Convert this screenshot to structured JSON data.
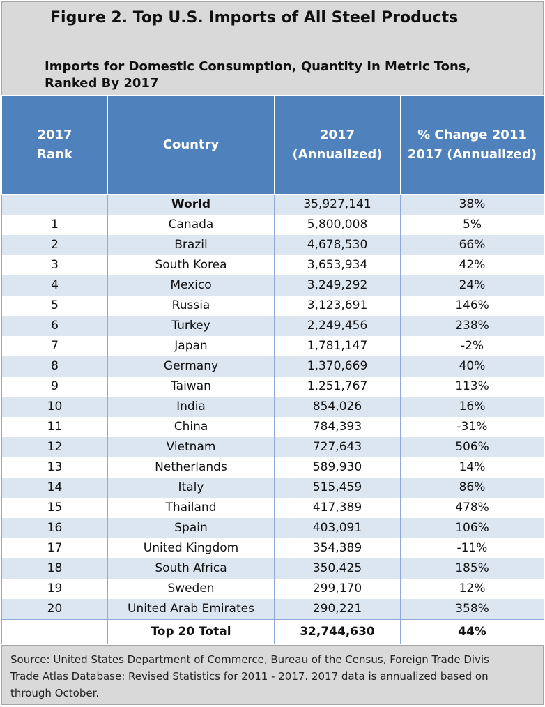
{
  "chart_data": {
    "type": "table",
    "title": "Figure 2. Top U.S. Imports of All Steel Products",
    "subtitle": {
      "line1": "Imports for Domestic Consumption, Quantity In Metric Tons,",
      "line2": "Ranked By 2017"
    },
    "columns": [
      {
        "line1": "2017",
        "line2": "Rank"
      },
      {
        "line1": "Country",
        "line2": ""
      },
      {
        "line1": "2017",
        "line2": "(Annualized)"
      },
      {
        "line1": "% Change 2011",
        "line2": "2017 (Annualized)"
      }
    ],
    "world": {
      "rank": "",
      "country": "World",
      "value": "35,927,141",
      "change": "38%"
    },
    "rows": [
      {
        "rank": "1",
        "country": "Canada",
        "value": "5,800,008",
        "change": "5%"
      },
      {
        "rank": "2",
        "country": "Brazil",
        "value": "4,678,530",
        "change": "66%"
      },
      {
        "rank": "3",
        "country": "South Korea",
        "value": "3,653,934",
        "change": "42%"
      },
      {
        "rank": "4",
        "country": "Mexico",
        "value": "3,249,292",
        "change": "24%"
      },
      {
        "rank": "5",
        "country": "Russia",
        "value": "3,123,691",
        "change": "146%"
      },
      {
        "rank": "6",
        "country": "Turkey",
        "value": "2,249,456",
        "change": "238%"
      },
      {
        "rank": "7",
        "country": "Japan",
        "value": "1,781,147",
        "change": "-2%"
      },
      {
        "rank": "8",
        "country": "Germany",
        "value": "1,370,669",
        "change": "40%"
      },
      {
        "rank": "9",
        "country": "Taiwan",
        "value": "1,251,767",
        "change": "113%"
      },
      {
        "rank": "10",
        "country": "India",
        "value": "854,026",
        "change": "16%"
      },
      {
        "rank": "11",
        "country": "China",
        "value": "784,393",
        "change": "-31%"
      },
      {
        "rank": "12",
        "country": "Vietnam",
        "value": "727,643",
        "change": "506%"
      },
      {
        "rank": "13",
        "country": "Netherlands",
        "value": "589,930",
        "change": "14%"
      },
      {
        "rank": "14",
        "country": "Italy",
        "value": "515,459",
        "change": "86%"
      },
      {
        "rank": "15",
        "country": "Thailand",
        "value": "417,389",
        "change": "478%"
      },
      {
        "rank": "16",
        "country": "Spain",
        "value": "403,091",
        "change": "106%"
      },
      {
        "rank": "17",
        "country": "United Kingdom",
        "value": "354,389",
        "change": "-11%"
      },
      {
        "rank": "18",
        "country": "South Africa",
        "value": "350,425",
        "change": "185%"
      },
      {
        "rank": "19",
        "country": "Sweden",
        "value": "299,170",
        "change": "12%"
      },
      {
        "rank": "20",
        "country": "United Arab Emirates",
        "value": "290,221",
        "change": "358%"
      }
    ],
    "total": {
      "label": "Top 20 Total",
      "value": "32,744,630",
      "change": "44%"
    },
    "source": {
      "line1": "Source: United States Department of Commerce, Bureau of the Census, Foreign Trade Divis",
      "line2": "Trade Atlas Database: Revised Statistics for 2011 - 2017.  2017 data is annualized based on",
      "line3": "through October."
    }
  },
  "colors": {
    "header_background": "#4f81bd",
    "band_background": "#dce6f1",
    "title_background": "#d9d9d9"
  }
}
